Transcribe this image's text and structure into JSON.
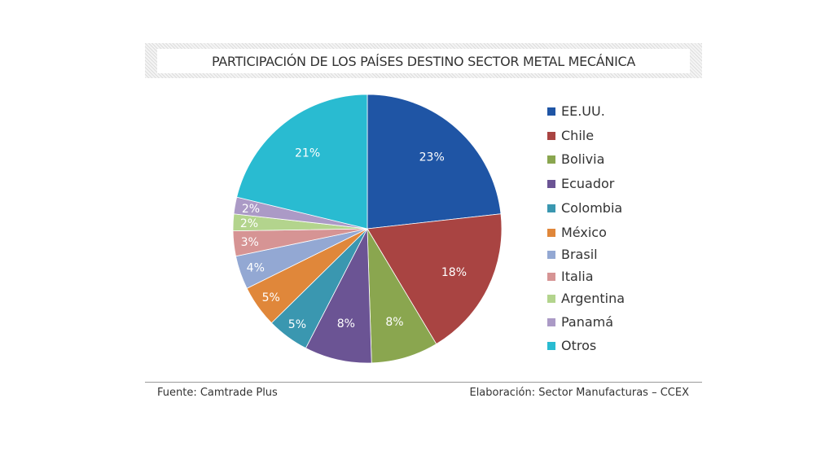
{
  "chart_data": {
    "type": "pie",
    "title": "PARTICIPACIÓN DE LOS PAÍSES DESTINO SECTOR METAL MECÁNICA",
    "categories": [
      "EE.UU.",
      "Chile",
      "Bolivia",
      "Ecuador",
      "Colombia",
      "México",
      "Brasil",
      "Italia",
      "Argentina",
      "Panamá",
      "Otros"
    ],
    "values": [
      23,
      18,
      8,
      8,
      5,
      5,
      4,
      3,
      2,
      2,
      21
    ],
    "labels": [
      "23%",
      "18%",
      "8%",
      "8%",
      "5%",
      "5%",
      "4%",
      "3%",
      "2%",
      "2%",
      "21%"
    ],
    "colors": [
      "#1f55a5",
      "#a94442",
      "#8aa64f",
      "#6b5494",
      "#3a97b0",
      "#e0873a",
      "#93a8d3",
      "#d69494",
      "#b3d48d",
      "#ab9ac6",
      "#29bbd1"
    ],
    "legend_position": "right",
    "start_angle": "top, clockwise"
  },
  "footer": {
    "source": "Fuente: Camtrade Plus",
    "credit": "Elaboración: Sector Manufacturas – CCEX"
  }
}
